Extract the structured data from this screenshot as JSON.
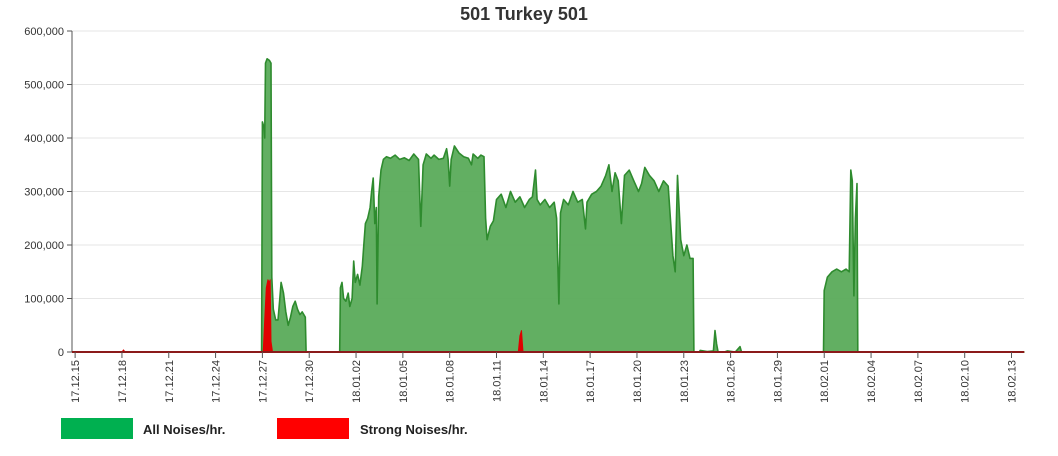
{
  "chart_data": {
    "type": "area",
    "title": "501 Turkey 501",
    "xlabel": "",
    "ylabel": "",
    "x_unit": "days since 17.12.15",
    "xlim": [
      -0.2,
      60.8
    ],
    "ylim": [
      0,
      600000
    ],
    "yticks": [
      0,
      100000,
      200000,
      300000,
      400000,
      500000,
      600000
    ],
    "ytick_labels": [
      "0",
      "100,000",
      "200,000",
      "300,000",
      "400,000",
      "500,000",
      "600,000"
    ],
    "xticks": [
      0,
      3,
      6,
      9,
      12,
      15,
      18,
      21,
      24,
      27,
      30,
      33,
      36,
      39,
      42,
      45,
      48,
      51,
      54,
      57,
      60
    ],
    "xtick_labels": [
      "17.12.15",
      "17.12.18",
      "17.12.21",
      "17.12.24",
      "17.12.27",
      "17.12.30",
      "18.01.02",
      "18.01.05",
      "18.01.08",
      "18.01.11",
      "18.01.14",
      "18.01.17",
      "18.01.20",
      "18.01.23",
      "18.01.26",
      "18.01.29",
      "18.02.01",
      "18.02.04",
      "18.02.07",
      "18.02.10",
      "18.02.13"
    ],
    "grid": true,
    "legend_position": "bottom-left",
    "series": [
      {
        "name": "All Noises/hr.",
        "color": "#2e8b2e",
        "fill": "#5aab5a",
        "points": [
          [
            0,
            0
          ],
          [
            11.95,
            0
          ],
          [
            12.0,
            430000
          ],
          [
            12.1,
            420000
          ],
          [
            12.15,
            400000
          ],
          [
            12.2,
            540000
          ],
          [
            12.3,
            548000
          ],
          [
            12.45,
            545000
          ],
          [
            12.55,
            540000
          ],
          [
            12.6,
            140000
          ],
          [
            12.7,
            80000
          ],
          [
            12.85,
            60000
          ],
          [
            13.0,
            60000
          ],
          [
            13.1,
            95000
          ],
          [
            13.2,
            130000
          ],
          [
            13.35,
            110000
          ],
          [
            13.5,
            75000
          ],
          [
            13.65,
            50000
          ],
          [
            13.8,
            65000
          ],
          [
            13.95,
            85000
          ],
          [
            14.1,
            95000
          ],
          [
            14.25,
            80000
          ],
          [
            14.4,
            70000
          ],
          [
            14.55,
            75000
          ],
          [
            14.75,
            65000
          ],
          [
            14.8,
            0
          ],
          [
            16.95,
            0
          ],
          [
            17.0,
            120000
          ],
          [
            17.1,
            130000
          ],
          [
            17.2,
            100000
          ],
          [
            17.35,
            95000
          ],
          [
            17.5,
            110000
          ],
          [
            17.6,
            85000
          ],
          [
            17.75,
            100000
          ],
          [
            17.85,
            170000
          ],
          [
            17.95,
            130000
          ],
          [
            18.1,
            145000
          ],
          [
            18.25,
            125000
          ],
          [
            18.4,
            160000
          ],
          [
            18.5,
            200000
          ],
          [
            18.6,
            240000
          ],
          [
            18.75,
            250000
          ],
          [
            18.9,
            270000
          ],
          [
            19.0,
            300000
          ],
          [
            19.1,
            325000
          ],
          [
            19.2,
            240000
          ],
          [
            19.3,
            270000
          ],
          [
            19.35,
            90000
          ],
          [
            19.45,
            290000
          ],
          [
            19.6,
            340000
          ],
          [
            19.75,
            360000
          ],
          [
            19.95,
            365000
          ],
          [
            20.2,
            362000
          ],
          [
            20.5,
            368000
          ],
          [
            20.8,
            360000
          ],
          [
            21.1,
            363000
          ],
          [
            21.4,
            358000
          ],
          [
            21.7,
            370000
          ],
          [
            22.0,
            360000
          ],
          [
            22.15,
            235000
          ],
          [
            22.3,
            350000
          ],
          [
            22.5,
            370000
          ],
          [
            22.8,
            362000
          ],
          [
            23.0,
            368000
          ],
          [
            23.3,
            360000
          ],
          [
            23.6,
            362000
          ],
          [
            23.8,
            380000
          ],
          [
            23.9,
            360000
          ],
          [
            24.0,
            310000
          ],
          [
            24.1,
            360000
          ],
          [
            24.3,
            385000
          ],
          [
            24.6,
            372000
          ],
          [
            24.9,
            365000
          ],
          [
            25.2,
            362000
          ],
          [
            25.4,
            350000
          ],
          [
            25.5,
            370000
          ],
          [
            25.8,
            362000
          ],
          [
            26.0,
            368000
          ],
          [
            26.2,
            365000
          ],
          [
            26.3,
            250000
          ],
          [
            26.4,
            210000
          ],
          [
            26.6,
            235000
          ],
          [
            26.8,
            245000
          ],
          [
            27.0,
            285000
          ],
          [
            27.3,
            295000
          ],
          [
            27.6,
            270000
          ],
          [
            27.9,
            300000
          ],
          [
            28.2,
            280000
          ],
          [
            28.5,
            290000
          ],
          [
            28.8,
            270000
          ],
          [
            29.1,
            285000
          ],
          [
            29.3,
            290000
          ],
          [
            29.5,
            340000
          ],
          [
            29.6,
            285000
          ],
          [
            29.8,
            275000
          ],
          [
            30.1,
            285000
          ],
          [
            30.4,
            270000
          ],
          [
            30.7,
            280000
          ],
          [
            30.85,
            250000
          ],
          [
            31.0,
            90000
          ],
          [
            31.1,
            260000
          ],
          [
            31.3,
            285000
          ],
          [
            31.6,
            275000
          ],
          [
            31.9,
            300000
          ],
          [
            32.2,
            280000
          ],
          [
            32.5,
            285000
          ],
          [
            32.7,
            230000
          ],
          [
            32.8,
            280000
          ],
          [
            33.1,
            295000
          ],
          [
            33.4,
            300000
          ],
          [
            33.7,
            310000
          ],
          [
            34.0,
            330000
          ],
          [
            34.2,
            350000
          ],
          [
            34.4,
            300000
          ],
          [
            34.6,
            335000
          ],
          [
            34.8,
            320000
          ],
          [
            35.0,
            240000
          ],
          [
            35.2,
            330000
          ],
          [
            35.5,
            340000
          ],
          [
            35.8,
            320000
          ],
          [
            36.1,
            300000
          ],
          [
            36.3,
            315000
          ],
          [
            36.5,
            345000
          ],
          [
            36.8,
            330000
          ],
          [
            37.1,
            320000
          ],
          [
            37.4,
            300000
          ],
          [
            37.7,
            320000
          ],
          [
            38.0,
            310000
          ],
          [
            38.3,
            180000
          ],
          [
            38.45,
            150000
          ],
          [
            38.6,
            330000
          ],
          [
            38.8,
            210000
          ],
          [
            39.0,
            180000
          ],
          [
            39.2,
            200000
          ],
          [
            39.4,
            175000
          ],
          [
            39.6,
            175000
          ],
          [
            39.65,
            0
          ],
          [
            40.0,
            0
          ],
          [
            40.05,
            3000
          ],
          [
            40.5,
            1000
          ],
          [
            40.9,
            2000
          ],
          [
            41.0,
            40000
          ],
          [
            41.1,
            15000
          ],
          [
            41.2,
            0
          ],
          [
            41.6,
            0
          ],
          [
            41.8,
            2000
          ],
          [
            42.3,
            0
          ],
          [
            42.6,
            10000
          ],
          [
            42.7,
            0
          ],
          [
            47.95,
            0
          ],
          [
            48.0,
            115000
          ],
          [
            48.2,
            140000
          ],
          [
            48.5,
            150000
          ],
          [
            48.8,
            155000
          ],
          [
            49.1,
            150000
          ],
          [
            49.4,
            155000
          ],
          [
            49.6,
            150000
          ],
          [
            49.7,
            340000
          ],
          [
            49.8,
            320000
          ],
          [
            49.9,
            105000
          ],
          [
            50.0,
            250000
          ],
          [
            50.1,
            315000
          ],
          [
            50.15,
            0
          ],
          [
            60.8,
            0
          ]
        ]
      },
      {
        "name": "Strong Noises/hr.",
        "color": "#e00000",
        "fill": "#e00000",
        "points": [
          [
            0,
            0
          ],
          [
            3.0,
            0
          ],
          [
            3.1,
            4000
          ],
          [
            3.2,
            0
          ],
          [
            12.05,
            0
          ],
          [
            12.15,
            60000
          ],
          [
            12.25,
            120000
          ],
          [
            12.35,
            135000
          ],
          [
            12.45,
            130000
          ],
          [
            12.5,
            135000
          ],
          [
            12.55,
            20000
          ],
          [
            12.65,
            0
          ],
          [
            28.4,
            0
          ],
          [
            28.5,
            30000
          ],
          [
            28.6,
            40000
          ],
          [
            28.7,
            0
          ],
          [
            60.8,
            0
          ]
        ]
      }
    ]
  }
}
